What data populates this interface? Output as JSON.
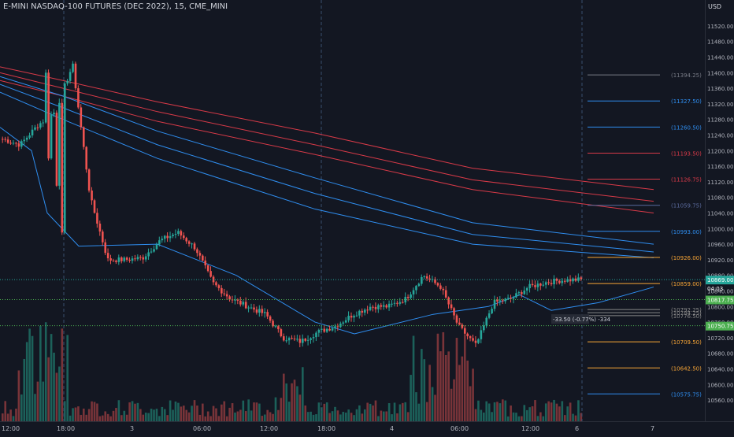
{
  "header": {
    "title": "E-MINI NASDAQ-100 FUTURES (DEC 2022), 15, CME_MINI",
    "currency": "USD"
  },
  "colors": {
    "up": "#26a69a",
    "down": "#ef5350",
    "red_ma": "#d83a48",
    "blue_ma": "#2f8ef0",
    "orange": "#f7a536",
    "bg": "#131722"
  },
  "chart_data": {
    "type": "candlestick",
    "ylim": [
      10540,
      11540
    ],
    "y_ticks": [
      11520,
      11480,
      11440,
      11400,
      11360,
      11320,
      11280,
      11240,
      11200,
      11160,
      11120,
      11080,
      11040,
      11000,
      10960,
      10920,
      10880,
      10840,
      10800,
      10760,
      10720,
      10680,
      10640,
      10600,
      10560
    ],
    "y_tick_labels": [
      "11520.00",
      "11480.00",
      "11440.00",
      "11400.00",
      "11360.00",
      "11320.00",
      "11280.00",
      "11240.00",
      "11200.00",
      "11160.00",
      "11120.00",
      "11080.00",
      "11040.00",
      "11000.00",
      "10960.00",
      "10920.00",
      "10880.00",
      "10840.00",
      "10800.00",
      "10760.00",
      "10720.00",
      "10680.00",
      "10640.00",
      "10600.00",
      "10560.00"
    ],
    "x_tick_labels": [
      "12:00",
      "18:00",
      "3",
      "06:00",
      "12:00",
      "18:00",
      "4",
      "06:00",
      "12:00",
      "6",
      "7"
    ],
    "price_path": [
      [
        11240,
        11230
      ],
      [
        11250,
        11215
      ],
      [
        11250,
        11265
      ],
      [
        11280,
        11300
      ],
      [
        11350,
        11420
      ],
      [
        11150,
        11080
      ],
      [
        10960,
        10920
      ],
      [
        10935,
        10920
      ],
      [
        10910,
        10925
      ],
      [
        10940,
        10970
      ],
      [
        10980,
        10990
      ],
      [
        10965,
        10950
      ],
      [
        10905,
        10860
      ],
      [
        10830,
        10820
      ],
      [
        10780,
        10800
      ],
      [
        10830,
        10780
      ],
      [
        10760,
        10720
      ],
      [
        10705,
        10710
      ],
      [
        10725,
        10735
      ],
      [
        10740,
        10750
      ],
      [
        10760,
        10780
      ],
      [
        10790,
        10800
      ],
      [
        10820,
        10800
      ],
      [
        10810,
        10820
      ],
      [
        10920,
        10880
      ],
      [
        10880,
        10850
      ],
      [
        10820,
        10750
      ],
      [
        10710,
        10700
      ],
      [
        10780,
        10810
      ],
      [
        10830,
        10820
      ],
      [
        10840,
        10850
      ],
      [
        10860,
        10862
      ],
      [
        10865,
        10868
      ],
      [
        10866,
        10869
      ]
    ],
    "current_price": "10869.00",
    "countdown": "04:03",
    "price_labels": [
      {
        "value": 11394.25,
        "label": "(11394.25)",
        "color": "#787b86"
      },
      {
        "value": 11327.5,
        "label": "(11327.50)",
        "color": "#2f8ef0"
      },
      {
        "value": 11260.5,
        "label": "(11260.50)",
        "color": "#2f8ef0"
      },
      {
        "value": 11193.5,
        "label": "(11193.50)",
        "color": "#d83a48"
      },
      {
        "value": 11126.75,
        "label": "(11126.75)",
        "color": "#d83a48"
      },
      {
        "value": 11059.75,
        "label": "(11059.75)",
        "color": "#5b6b9e"
      },
      {
        "value": 10993.0,
        "label": "(10993.00)",
        "color": "#2f8ef0"
      },
      {
        "value": 10926.0,
        "label": "(10926.00)",
        "color": "#f7a536"
      },
      {
        "value": 10859.0,
        "label": "(10859.00)",
        "color": "#f7a536"
      },
      {
        "value": 10792.25,
        "label": "(10792.25)",
        "color": "#888888"
      },
      {
        "value": 10784.25,
        "label": "(10784.25)",
        "color": "#888888"
      },
      {
        "value": 10776.5,
        "label": "(10776.50)",
        "color": "#888888"
      },
      {
        "value": 10709.5,
        "label": "(10709.50)",
        "color": "#f7a536"
      },
      {
        "value": 10642.5,
        "label": "(10642.50)",
        "color": "#f7a536"
      },
      {
        "value": 10575.75,
        "label": "(10575.75)",
        "color": "#2f8ef0"
      }
    ],
    "axis_badges": [
      {
        "value": 10869.0,
        "label": "10869.00",
        "color": "#26a69a"
      },
      {
        "value": 10817.75,
        "label": "10817.75",
        "color": "#4caf50"
      },
      {
        "value": 10750.75,
        "label": "10750.75",
        "color": "#4caf50"
      }
    ],
    "measure_label": "-33.50 (-0.77%) -334"
  }
}
